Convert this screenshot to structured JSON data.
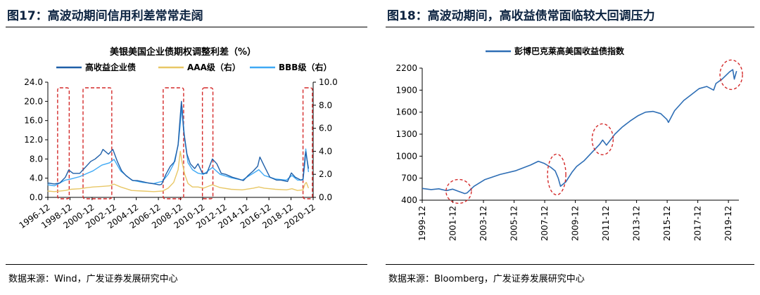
{
  "left": {
    "fig_title": "图17：高波动期间信用利差常常走阔",
    "source": "数据来源：Wind，广发证券发展研究中心",
    "chart_data": {
      "type": "line",
      "title": "美银美国企业债期权调整利差（%）",
      "x_ticks": [
        "1996-12",
        "1998-12",
        "2000-12",
        "2002-12",
        "2004-12",
        "2006-12",
        "2008-12",
        "2010-12",
        "2012-12",
        "2014-12",
        "2016-12",
        "2018-12",
        "2020-12"
      ],
      "x_range": [
        1996.917,
        2020.917
      ],
      "ylim_left": [
        0,
        24
      ],
      "yticks_left": [
        "0.0",
        "4.0",
        "8.0",
        "12.0",
        "16.0",
        "20.0",
        "24.0"
      ],
      "ylim_right": [
        0,
        10
      ],
      "yticks_right": [
        "0.0",
        "2.0",
        "4.0",
        "6.0",
        "8.0",
        "10.0"
      ],
      "legend": "top",
      "grid": false,
      "series": [
        {
          "name": "高收益企业债",
          "axis": "left",
          "color": "#1f5fa8",
          "x": [
            1996.9,
            1997.5,
            1998.0,
            1998.5,
            1998.8,
            1999.2,
            1999.8,
            2000.2,
            2000.8,
            2001.2,
            2001.7,
            2001.9,
            2002.4,
            2002.8,
            2003.2,
            2003.6,
            2004.0,
            2004.6,
            2005.0,
            2005.6,
            2006.0,
            2006.6,
            2007.0,
            2007.2,
            2007.6,
            2008.0,
            2008.4,
            2008.7,
            2008.9,
            2009.0,
            2009.2,
            2009.5,
            2009.8,
            2010.2,
            2010.5,
            2010.9,
            2011.3,
            2011.8,
            2012.2,
            2012.6,
            2013.0,
            2013.6,
            2014.2,
            2014.6,
            2015.0,
            2015.5,
            2015.9,
            2016.1,
            2016.5,
            2017.0,
            2017.6,
            2018.0,
            2018.6,
            2018.95,
            2019.3,
            2019.8,
            2020.0,
            2020.2,
            2020.25,
            2020.5
          ],
          "y": [
            3.0,
            2.8,
            3.0,
            4.2,
            5.7,
            5.0,
            5.0,
            6.0,
            7.5,
            8.0,
            9.0,
            10.0,
            9.0,
            10.0,
            7.5,
            5.5,
            4.5,
            3.5,
            3.5,
            3.2,
            3.0,
            2.8,
            2.6,
            2.7,
            4.8,
            6.5,
            7.5,
            11.0,
            17.0,
            20.0,
            14.0,
            9.0,
            7.0,
            6.0,
            7.0,
            5.0,
            5.0,
            8.0,
            7.0,
            5.0,
            4.8,
            4.2,
            3.8,
            3.5,
            4.5,
            5.5,
            6.5,
            8.4,
            6.5,
            4.2,
            3.6,
            3.6,
            3.3,
            5.1,
            4.2,
            3.6,
            3.8,
            8.8,
            9.5,
            6.0
          ]
        },
        {
          "name": "AAA级（右）",
          "axis": "right",
          "color": "#e8c766",
          "x": [
            1996.9,
            1997.5,
            1998.5,
            1999.0,
            1999.8,
            2000.5,
            2001.0,
            2001.8,
            2002.5,
            2002.9,
            2003.5,
            2004.5,
            2005.5,
            2006.5,
            2007.3,
            2007.8,
            2008.3,
            2008.7,
            2008.9,
            2009.05,
            2009.3,
            2009.6,
            2010.0,
            2010.5,
            2011.0,
            2011.8,
            2012.5,
            2013.5,
            2014.5,
            2015.5,
            2016.0,
            2016.5,
            2017.5,
            2018.5,
            2019.0,
            2019.5,
            2020.0,
            2020.2,
            2020.3,
            2020.5
          ],
          "y": [
            0.55,
            0.5,
            0.6,
            0.7,
            0.75,
            0.85,
            0.9,
            0.95,
            1.0,
            1.15,
            0.9,
            0.6,
            0.55,
            0.5,
            0.55,
            0.8,
            1.3,
            2.4,
            4.0,
            3.1,
            2.0,
            1.2,
            0.9,
            0.9,
            0.8,
            1.1,
            0.85,
            0.7,
            0.65,
            0.8,
            0.9,
            0.8,
            0.7,
            0.65,
            0.75,
            0.6,
            0.65,
            1.2,
            1.3,
            0.8
          ]
        },
        {
          "name": "BBB级（右）",
          "axis": "right",
          "color": "#3fa9f5",
          "x": [
            1996.9,
            1997.5,
            1998.5,
            1999.0,
            1999.8,
            2000.5,
            2001.0,
            2001.8,
            2002.5,
            2002.9,
            2003.5,
            2004.5,
            2005.5,
            2006.5,
            2007.3,
            2007.8,
            2008.3,
            2008.7,
            2008.9,
            2009.05,
            2009.3,
            2009.6,
            2010.0,
            2010.5,
            2011.0,
            2011.8,
            2012.5,
            2013.5,
            2014.5,
            2015.5,
            2016.0,
            2016.5,
            2017.5,
            2018.5,
            2019.0,
            2019.5,
            2020.0,
            2020.2,
            2020.25,
            2020.3,
            2020.5
          ],
          "y": [
            1.1,
            1.0,
            1.5,
            1.6,
            1.8,
            2.1,
            2.3,
            2.8,
            3.0,
            3.3,
            2.3,
            1.5,
            1.3,
            1.2,
            1.4,
            2.0,
            2.9,
            4.5,
            6.4,
            7.9,
            5.0,
            3.0,
            2.4,
            2.1,
            2.0,
            2.6,
            2.0,
            1.7,
            1.5,
            2.1,
            2.4,
            1.9,
            1.6,
            1.5,
            1.9,
            1.5,
            1.5,
            3.2,
            4.2,
            3.8,
            2.2
          ]
        }
      ]
    }
  },
  "right": {
    "fig_title": "图18：高波动期间，高收益债常面临较大回调压力",
    "source": "数据来源：Bloomberg，广发证券发展研究中心",
    "chart_data": {
      "type": "line",
      "x_ticks": [
        "1999-12",
        "2001-12",
        "2003-12",
        "2005-12",
        "2007-12",
        "2009-12",
        "2011-12",
        "2013-12",
        "2015-12",
        "2017-12",
        "2019-12"
      ],
      "x_range": [
        1999.917,
        2020.6
      ],
      "ylim": [
        400,
        2200
      ],
      "yticks": [
        "400",
        "700",
        "1000",
        "1300",
        "1600",
        "1900",
        "2200"
      ],
      "legend": "top",
      "grid": false,
      "series": [
        {
          "name": "彭博巴克莱高美国收益债指数",
          "color": "#2e6eb5",
          "x": [
            1999.92,
            2000.5,
            2001.0,
            2001.5,
            2001.9,
            2002.3,
            2002.7,
            2002.85,
            2003.3,
            2004.0,
            2005.0,
            2006.0,
            2007.0,
            2007.5,
            2007.9,
            2008.3,
            2008.6,
            2008.8,
            2008.95,
            2009.3,
            2009.7,
            2010.0,
            2010.5,
            2011.0,
            2011.5,
            2011.7,
            2011.95,
            2012.5,
            2013.0,
            2013.5,
            2014.0,
            2014.5,
            2015.0,
            2015.5,
            2015.9,
            2016.0,
            2016.4,
            2017.0,
            2017.5,
            2018.0,
            2018.5,
            2018.95,
            2019.1,
            2019.5,
            2020.0,
            2020.2,
            2020.3,
            2020.45
          ],
          "y": [
            560,
            545,
            555,
            530,
            550,
            520,
            490,
            500,
            590,
            680,
            750,
            800,
            880,
            930,
            900,
            850,
            800,
            700,
            590,
            650,
            780,
            860,
            940,
            1050,
            1160,
            1220,
            1150,
            1300,
            1400,
            1480,
            1550,
            1600,
            1610,
            1580,
            1500,
            1460,
            1620,
            1760,
            1840,
            1920,
            1950,
            1900,
            1990,
            2050,
            2150,
            2180,
            2050,
            2160
          ]
        }
      ]
    }
  }
}
